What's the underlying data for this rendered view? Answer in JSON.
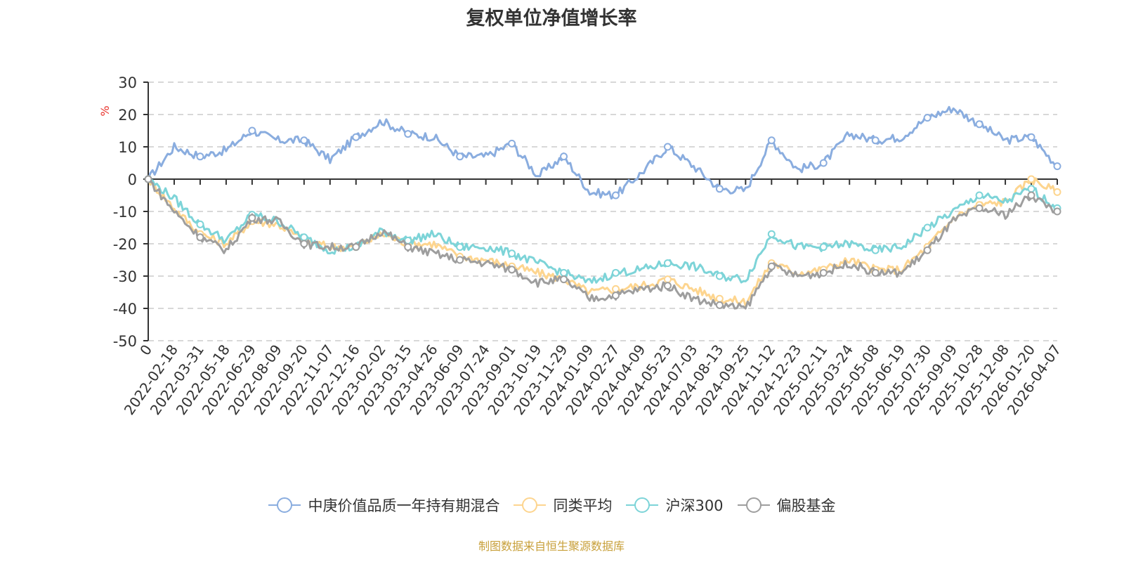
{
  "chart_data": {
    "type": "line",
    "title": "复权单位净值增长率",
    "ylabel": "%",
    "xlabel": "",
    "ylim": [
      -50,
      30
    ],
    "yticks": [
      30,
      20,
      10,
      0,
      -10,
      -20,
      -30,
      -40,
      -50
    ],
    "grid": true,
    "legend_position": "bottom",
    "x": [
      "0",
      "2022-02-18",
      "2022-03-31",
      "2022-05-18",
      "2022-06-29",
      "2022-08-09",
      "2022-09-20",
      "2022-11-07",
      "2022-12-16",
      "2023-02-02",
      "2023-03-15",
      "2023-04-26",
      "2023-06-09",
      "2023-07-24",
      "2023-09-01",
      "2023-10-19",
      "2023-11-29",
      "2024-01-09",
      "2024-02-27",
      "2024-04-09",
      "2024-05-23",
      "2024-07-03",
      "2024-08-13",
      "2024-09-25",
      "2024-11-12",
      "2024-12-23",
      "2025-02-11",
      "2025-03-24",
      "2025-05-08",
      "2025-06-19",
      "2025-07-30",
      "2025-09-09",
      "2025-10-28",
      "2025-12-08",
      "2026-01-20",
      "2026-04-07"
    ],
    "series": [
      {
        "name": "中庚价值品质一年持有期混合",
        "color": "#8aaddf",
        "values": [
          0,
          10,
          7,
          9,
          15,
          12,
          12,
          6,
          13,
          18,
          14,
          13,
          7,
          7,
          11,
          1,
          7,
          -4,
          -5,
          2,
          10,
          4,
          -3,
          -3.5,
          12,
          3,
          5,
          14,
          12,
          13,
          19,
          22,
          17,
          12,
          13,
          4
        ]
      },
      {
        "name": "同类平均",
        "color": "#fdd58f",
        "values": [
          0,
          -9,
          -17,
          -20,
          -13,
          -14,
          -19,
          -21,
          -21,
          -17,
          -20,
          -20,
          -24,
          -25,
          -27,
          -29,
          -31,
          -35,
          -34,
          -33,
          -31,
          -34,
          -37,
          -38,
          -26,
          -29,
          -28,
          -25,
          -28,
          -28,
          -21,
          -12,
          -8,
          -7,
          0,
          -4
        ]
      },
      {
        "name": "沪深300",
        "color": "#7dd4d8",
        "values": [
          0,
          -6,
          -14,
          -19,
          -11,
          -13,
          -18,
          -22,
          -21,
          -16,
          -19,
          -17,
          -21,
          -21,
          -23,
          -26,
          -29,
          -32,
          -29,
          -28,
          -26,
          -27,
          -30,
          -31,
          -17,
          -21,
          -21,
          -20,
          -22,
          -21,
          -15,
          -10,
          -5,
          -7,
          -3,
          -9
        ]
      },
      {
        "name": "偏股基金",
        "color": "#9e9e9e",
        "values": [
          0,
          -10,
          -18,
          -22,
          -12,
          -13,
          -20,
          -21,
          -21,
          -16,
          -21,
          -23,
          -25,
          -26,
          -28,
          -32,
          -31,
          -37,
          -36,
          -34,
          -33,
          -37,
          -39,
          -40,
          -27,
          -30,
          -29,
          -26,
          -29,
          -29,
          -22,
          -13,
          -9,
          -11,
          -5,
          -10
        ]
      }
    ]
  },
  "footer": {
    "source": "制图数据来自恒生聚源数据库"
  }
}
